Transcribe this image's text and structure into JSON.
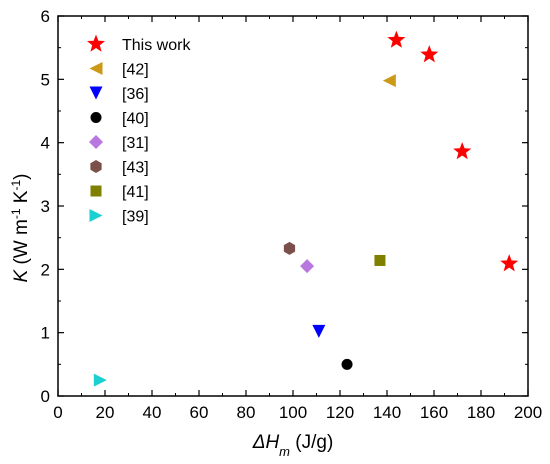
{
  "chart_data": {
    "type": "scatter",
    "xlabel": {
      "main": "ΔH",
      "sub": "m",
      "unit": " (J/g)"
    },
    "ylabel": {
      "main": "K",
      "pre": " (W m",
      "sup1": "-1",
      "mid": " K",
      "sup2": "-1",
      "post": ")"
    },
    "xlim": [
      0,
      200
    ],
    "ylim": [
      0,
      6
    ],
    "xticks": [
      0,
      20,
      40,
      60,
      80,
      100,
      120,
      140,
      160,
      180,
      200
    ],
    "yticks": [
      0,
      1,
      2,
      3,
      4,
      5,
      6
    ],
    "grid": false,
    "legend_position": "upper-left",
    "series": [
      {
        "name": "This work",
        "marker": "star",
        "color": "#ff0000",
        "points": [
          [
            144,
            5.62
          ],
          [
            158,
            5.39
          ],
          [
            172,
            3.86
          ],
          [
            192,
            2.09
          ]
        ]
      },
      {
        "name": "[42]",
        "marker": "triangle-left",
        "color": "#cc9a1a",
        "points": [
          [
            141,
            4.98
          ]
        ]
      },
      {
        "name": "[36]",
        "marker": "triangle-down",
        "color": "#0000ff",
        "points": [
          [
            111,
            1.02
          ]
        ]
      },
      {
        "name": "[40]",
        "marker": "circle",
        "color": "#000000",
        "points": [
          [
            123,
            0.5
          ]
        ]
      },
      {
        "name": "[31]",
        "marker": "diamond",
        "color": "#b878e0",
        "points": [
          [
            106,
            2.05
          ]
        ]
      },
      {
        "name": "[43]",
        "marker": "hexagon",
        "color": "#7b4f4a",
        "points": [
          [
            98.5,
            2.33
          ]
        ]
      },
      {
        "name": "[41]",
        "marker": "square",
        "color": "#808000",
        "points": [
          [
            137,
            2.14
          ]
        ]
      },
      {
        "name": "[39]",
        "marker": "triangle-right",
        "color": "#1ccfd0",
        "points": [
          [
            18,
            0.25
          ]
        ]
      }
    ]
  }
}
